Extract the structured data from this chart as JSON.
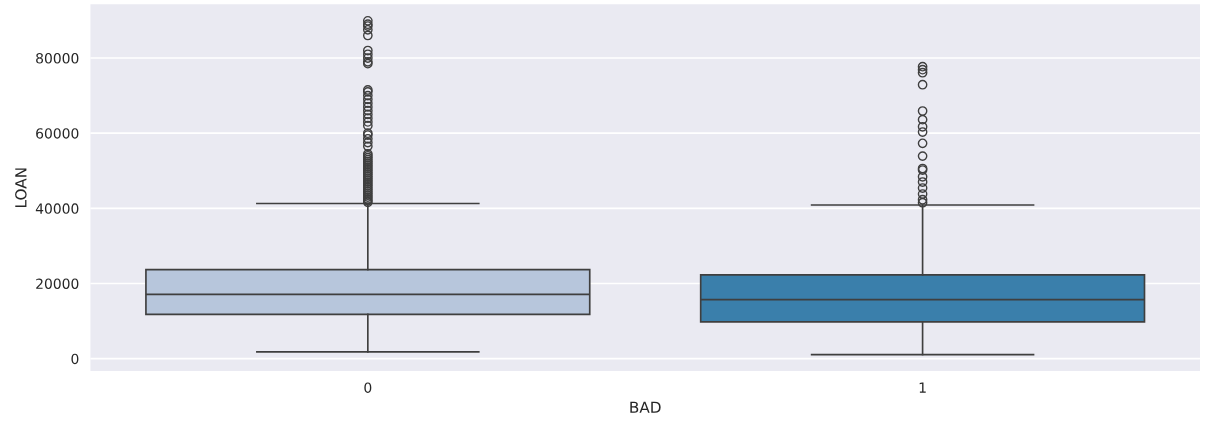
{
  "chart_data": {
    "type": "box",
    "xlabel": "BAD",
    "ylabel": "LOAN",
    "categories": [
      "0",
      "1"
    ],
    "colors": [
      "#b7c6dc",
      "#3a7fab"
    ],
    "boxes": [
      {
        "low": 1800,
        "q1": 11800,
        "median": 17100,
        "q3": 23700,
        "high": 41300,
        "outliers": [
          41600,
          42000,
          42500,
          43000,
          43500,
          44000,
          44500,
          45000,
          45500,
          46000,
          46500,
          47000,
          47500,
          48000,
          48500,
          49000,
          49500,
          50000,
          50500,
          51000,
          51500,
          52000,
          52500,
          53000,
          53500,
          54000,
          54500,
          56500,
          57500,
          58500,
          59500,
          60000,
          62000,
          63000,
          64000,
          65000,
          66000,
          67000,
          68000,
          69000,
          70000,
          71000,
          71500,
          78500,
          79000,
          80000,
          81000,
          82000,
          86000,
          87500,
          88500,
          89000,
          89900
        ]
      },
      {
        "low": 1100,
        "q1": 9800,
        "median": 15700,
        "q3": 22300,
        "high": 40900,
        "outliers": [
          41500,
          42300,
          43800,
          45400,
          47000,
          48400,
          50200,
          50600,
          53900,
          57300,
          60300,
          61700,
          63600,
          65900,
          72900,
          76100,
          76900,
          77700
        ]
      }
    ],
    "ylim": [
      -3300,
      94300
    ],
    "yticks": [
      0,
      20000,
      40000,
      60000,
      80000
    ],
    "grid": "y",
    "marker": "circle"
  }
}
